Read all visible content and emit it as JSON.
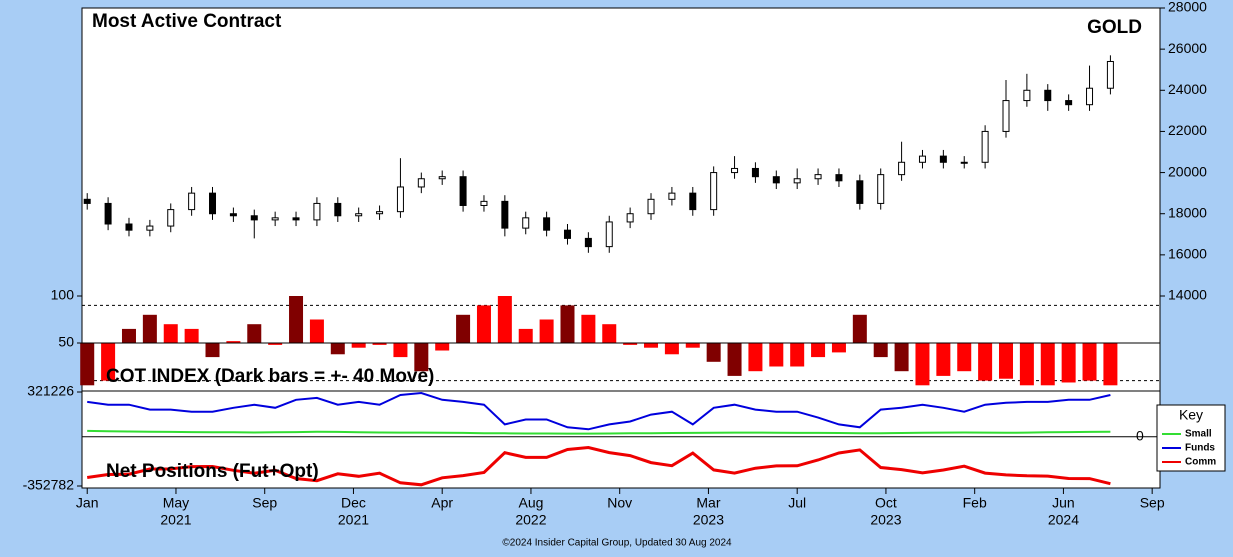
{
  "chart_data": [
    {
      "type": "candlestick",
      "title": "Most Active Contract",
      "label": "GOLD",
      "ylim": [
        14000,
        28000
      ],
      "yticks": [
        14000,
        16000,
        18000,
        20000,
        22000,
        24000,
        26000,
        28000
      ],
      "up_color": "#ffffff",
      "down_color": "#000000",
      "x": [
        0,
        4,
        8,
        12,
        16,
        20,
        24,
        28,
        32,
        36,
        40,
        44,
        48,
        52,
        56,
        60,
        64,
        68,
        72,
        76,
        80,
        84,
        88,
        92,
        96,
        100,
        104,
        108,
        112,
        116,
        120,
        124,
        128,
        132,
        136,
        140,
        144,
        148,
        152,
        156,
        160,
        164,
        168,
        172,
        176,
        180,
        184,
        188,
        192,
        196
      ],
      "open": [
        18700,
        18500,
        17500,
        17200,
        17400,
        18200,
        19000,
        18000,
        17900,
        17700,
        17800,
        17700,
        18500,
        17900,
        18000,
        18100,
        19300,
        19700,
        19800,
        18400,
        18600,
        17300,
        17800,
        17200,
        16800,
        16400,
        17600,
        18000,
        18700,
        19000,
        18200,
        20000,
        20200,
        19800,
        19500,
        19700,
        19900,
        19600,
        18500,
        19900,
        20500,
        20800,
        20500,
        20500,
        22000,
        23500,
        24000,
        23500,
        23300,
        24100
      ],
      "high": [
        19000,
        18800,
        17800,
        17700,
        18500,
        19300,
        19300,
        18300,
        18200,
        18100,
        18100,
        18800,
        18800,
        18300,
        18400,
        20700,
        20000,
        20100,
        20100,
        18900,
        18900,
        18100,
        18100,
        17500,
        17100,
        17900,
        18300,
        19000,
        19300,
        19300,
        20300,
        20800,
        20500,
        20100,
        20200,
        20200,
        20200,
        19900,
        20200,
        21500,
        21100,
        21100,
        20800,
        22300,
        24500,
        24800,
        24300,
        23800,
        25200,
        25700
      ],
      "low": [
        18200,
        17200,
        16900,
        16900,
        17100,
        17900,
        17700,
        17600,
        16800,
        17400,
        17400,
        17400,
        17600,
        17600,
        17700,
        17800,
        19000,
        19400,
        18100,
        18100,
        16900,
        17000,
        16900,
        16500,
        16100,
        16100,
        17300,
        17700,
        18400,
        17900,
        17900,
        19700,
        19500,
        19200,
        19200,
        19400,
        19300,
        18200,
        18200,
        19600,
        20200,
        20200,
        20200,
        20200,
        21700,
        23200,
        23000,
        23000,
        23000,
        23800
      ],
      "close": [
        18500,
        17500,
        17200,
        17400,
        18200,
        19000,
        18000,
        17900,
        17700,
        17800,
        17700,
        18500,
        17900,
        18000,
        18100,
        19300,
        19700,
        19800,
        18400,
        18600,
        17300,
        17800,
        17200,
        16800,
        16400,
        17600,
        18000,
        18700,
        19000,
        18200,
        20000,
        20200,
        19800,
        19500,
        19700,
        19900,
        19600,
        18500,
        19900,
        20500,
        20800,
        20500,
        20500,
        22000,
        23500,
        24000,
        23500,
        23300,
        24100,
        25400
      ]
    },
    {
      "type": "bar",
      "label": "COT INDEX (Dark bars = +- 40 Move)",
      "ylim": [
        0,
        100
      ],
      "yticks": [
        50,
        100
      ],
      "base": 50,
      "dashed_levels": [
        10,
        90
      ],
      "color": "#ff0000",
      "dark_color": "#800000",
      "x": [
        0,
        4,
        8,
        12,
        16,
        20,
        24,
        28,
        32,
        36,
        40,
        44,
        48,
        52,
        56,
        60,
        64,
        68,
        72,
        76,
        80,
        84,
        88,
        92,
        96,
        100,
        104,
        108,
        112,
        116,
        120,
        124,
        128,
        132,
        136,
        140,
        144,
        148,
        152,
        156,
        160,
        164,
        168,
        172,
        176,
        180,
        184,
        188,
        192,
        196
      ],
      "values": [
        5,
        10,
        65,
        80,
        70,
        65,
        35,
        52,
        70,
        48,
        100,
        75,
        38,
        45,
        48,
        35,
        20,
        42,
        80,
        90,
        100,
        65,
        75,
        90,
        80,
        70,
        48,
        45,
        38,
        45,
        30,
        15,
        20,
        25,
        25,
        35,
        40,
        80,
        35,
        20,
        5,
        15,
        20,
        10,
        12,
        5,
        5,
        8,
        10,
        5
      ],
      "dark": [
        true,
        false,
        true,
        true,
        false,
        false,
        true,
        false,
        true,
        false,
        true,
        false,
        true,
        false,
        false,
        false,
        true,
        false,
        true,
        false,
        false,
        false,
        false,
        true,
        false,
        false,
        false,
        false,
        false,
        false,
        true,
        true,
        false,
        false,
        false,
        false,
        false,
        true,
        true,
        true,
        false,
        false,
        false,
        false,
        false,
        false,
        false,
        false,
        false,
        false
      ]
    },
    {
      "type": "line",
      "label": "Net Positions (Fut+Opt)",
      "ylim": [
        -352782,
        321226
      ],
      "yticks": [
        -352782,
        321226
      ],
      "right_ticks": [
        0
      ],
      "xlim": [
        -1,
        205.5
      ],
      "xticks": [
        {
          "value": 0,
          "label": "Jan"
        },
        {
          "value": 17,
          "label": "May"
        },
        {
          "value": 34,
          "label": "Sep"
        },
        {
          "value": 51,
          "label": "Dec"
        },
        {
          "value": 68,
          "label": "Apr"
        },
        {
          "value": 85,
          "label": "Aug"
        },
        {
          "value": 102,
          "label": "Nov"
        },
        {
          "value": 119,
          "label": "Mar"
        },
        {
          "value": 136,
          "label": "Jul"
        },
        {
          "value": 153,
          "label": "Oct"
        },
        {
          "value": 170,
          "label": "Feb"
        },
        {
          "value": 187,
          "label": "Jun"
        },
        {
          "value": 204,
          "label": "Sep"
        }
      ],
      "year_labels": [
        {
          "value": 17,
          "label": "2021"
        },
        {
          "value": 51,
          "label": "2021"
        },
        {
          "value": 85,
          "label": "2022"
        },
        {
          "value": 119,
          "label": "2023"
        },
        {
          "value": 153,
          "label": "2023"
        },
        {
          "value": 187,
          "label": "2024"
        }
      ],
      "legend_title": "Key",
      "legend": "right",
      "x": [
        0,
        4,
        8,
        12,
        16,
        20,
        24,
        28,
        32,
        36,
        40,
        44,
        48,
        52,
        56,
        60,
        64,
        68,
        72,
        76,
        80,
        84,
        88,
        92,
        96,
        100,
        104,
        108,
        112,
        116,
        120,
        124,
        128,
        132,
        136,
        140,
        144,
        148,
        152,
        156,
        160,
        164,
        168,
        172,
        176,
        180,
        184,
        188,
        192,
        196
      ],
      "series": [
        {
          "name": "Small",
          "color": "#33dd33",
          "values": [
            42000,
            40000,
            38000,
            36000,
            35000,
            34000,
            33000,
            32000,
            31000,
            32000,
            34000,
            36000,
            35000,
            33000,
            31000,
            30000,
            30000,
            29000,
            28000,
            26000,
            25000,
            24000,
            24000,
            23000,
            23000,
            24000,
            25000,
            26000,
            27000,
            28000,
            29000,
            30000,
            30000,
            29000,
            28000,
            28000,
            27000,
            26000,
            25000,
            27000,
            29000,
            30000,
            31000,
            30000,
            29000,
            30000,
            32000,
            34000,
            35000,
            36000
          ]
        },
        {
          "name": "Funds",
          "color": "#0000dd",
          "values": [
            250000,
            230000,
            230000,
            195000,
            195000,
            180000,
            180000,
            208000,
            230000,
            208000,
            265000,
            279000,
            230000,
            250000,
            230000,
            300000,
            314000,
            265000,
            250000,
            230000,
            89000,
            124000,
            124000,
            68000,
            54000,
            89000,
            110000,
            159000,
            180000,
            89000,
            208000,
            230000,
            195000,
            180000,
            180000,
            138000,
            89000,
            68000,
            195000,
            208000,
            230000,
            208000,
            180000,
            230000,
            244000,
            250000,
            250000,
            265000,
            265000,
            300000
          ]
        },
        {
          "name": "Comm",
          "color": "#ee0000",
          "values": [
            -292000,
            -270000,
            -268000,
            -231000,
            -230000,
            -214000,
            -213000,
            -240000,
            -261000,
            -240000,
            -299000,
            -315000,
            -265000,
            -283000,
            -261000,
            -330000,
            -344000,
            -294000,
            -278000,
            -256000,
            -114000,
            -148000,
            -148000,
            -91000,
            -77000,
            -113000,
            -135000,
            -185000,
            -207000,
            -117000,
            -237000,
            -260000,
            -225000,
            -209000,
            -208000,
            -166000,
            -116000,
            -94000,
            -220000,
            -235000,
            -259000,
            -238000,
            -211000,
            -260000,
            -273000,
            -280000,
            -282000,
            -299000,
            -300000,
            -336000
          ]
        }
      ]
    }
  ],
  "footer": "©2024 Insider Capital Group, Updated 30 Aug 2024"
}
